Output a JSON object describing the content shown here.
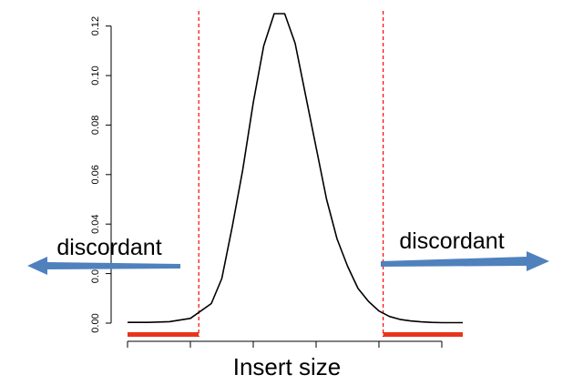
{
  "chart_data": {
    "type": "line",
    "xlabel": "Insert size",
    "ylabel": "",
    "ylim": [
      0,
      0.125
    ],
    "yticks": [
      "0.00",
      "0.02",
      "0.04",
      "0.06",
      "0.08",
      "0.10",
      "0.12"
    ],
    "xlim": [
      0,
      16
    ],
    "x_tick_positions": [
      0,
      3,
      6,
      9,
      12,
      15
    ],
    "series": [
      {
        "x": [
          0,
          1,
          2,
          3,
          4,
          4.5,
          5,
          5.5,
          6,
          6.5,
          7,
          7.5,
          8,
          8.5,
          9,
          9.5,
          10,
          10.5,
          11,
          11.5,
          12,
          12.5,
          13,
          13.5,
          14,
          14.5,
          15,
          16
        ],
        "values": [
          0.0003,
          0.0003,
          0.0006,
          0.0019,
          0.0079,
          0.018,
          0.039,
          0.062,
          0.089,
          0.112,
          0.125,
          0.125,
          0.113,
          0.092,
          0.071,
          0.05,
          0.034,
          0.023,
          0.014,
          0.0088,
          0.0049,
          0.0027,
          0.0015,
          0.0009,
          0.0005,
          0.0003,
          0.0002,
          0.0002
        ],
        "color": "#000000"
      }
    ],
    "thresholds": [
      {
        "x": 3.4,
        "color": "#ff0000",
        "style": "dashed"
      },
      {
        "x": 12.2,
        "color": "#ff0000",
        "style": "dashed"
      }
    ],
    "shaded_ranges": [
      {
        "from": 0,
        "to": 3.4,
        "color": "#e8341c"
      },
      {
        "from": 12.2,
        "to": 16,
        "color": "#e8341c"
      }
    ],
    "annotations": [
      {
        "text": "discordant",
        "side": "left",
        "arrow_direction": "left",
        "arrow_color": "#4f81bd"
      },
      {
        "text": "discordant",
        "side": "right",
        "arrow_direction": "right",
        "arrow_color": "#4f81bd"
      }
    ]
  }
}
